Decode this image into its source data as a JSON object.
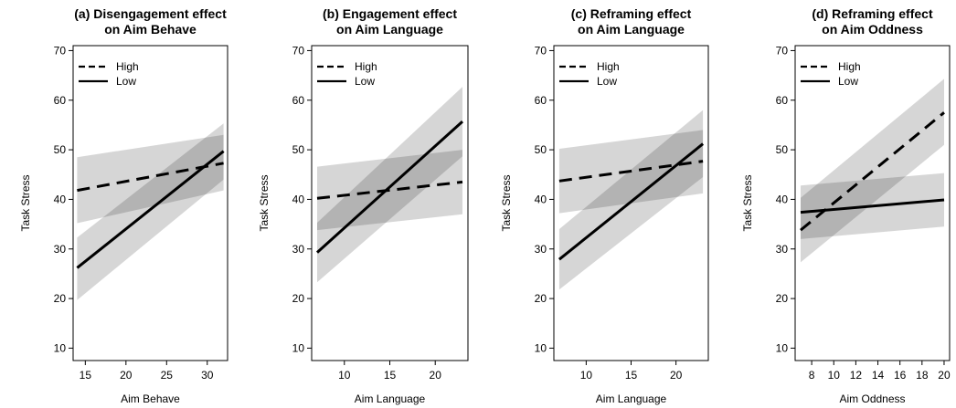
{
  "chart_data": [
    {
      "type": "line",
      "title": "(a) Disengagement effect",
      "subtitle": "on Aim Behave",
      "xlabel": "Aim Behave",
      "ylabel": "Task Stress",
      "xlim": [
        13.5,
        32.5
      ],
      "ylim": [
        7.5,
        71
      ],
      "xticks": [
        15,
        20,
        25,
        30
      ],
      "yticks": [
        10,
        20,
        30,
        40,
        50,
        60,
        70
      ],
      "legend": {
        "position": "top-left"
      },
      "series": [
        {
          "name": "High",
          "style": "dashed",
          "x": [
            14,
            32
          ],
          "y": [
            41.8,
            47.3
          ],
          "band_low": [
            35.2,
            41.8
          ],
          "band_high": [
            48.5,
            53.0
          ]
        },
        {
          "name": "Low",
          "style": "solid",
          "x": [
            14,
            32
          ],
          "y": [
            26.2,
            49.7
          ],
          "band_low": [
            19.7,
            44.0
          ],
          "band_high": [
            32.3,
            55.3
          ]
        }
      ]
    },
    {
      "type": "line",
      "title": "(b) Engagement effect",
      "subtitle": "on Aim Language",
      "xlabel": "Aim Language",
      "ylabel": "Task Stress",
      "xlim": [
        6.4,
        23.6
      ],
      "ylim": [
        7.5,
        71
      ],
      "xticks": [
        10,
        15,
        20
      ],
      "yticks": [
        10,
        20,
        30,
        40,
        50,
        60,
        70
      ],
      "legend": {
        "position": "top-left"
      },
      "series": [
        {
          "name": "High",
          "style": "dashed",
          "x": [
            7,
            23
          ],
          "y": [
            40.2,
            43.5
          ],
          "band_low": [
            33.8,
            37.0
          ],
          "band_high": [
            46.6,
            50.0
          ]
        },
        {
          "name": "Low",
          "style": "solid",
          "x": [
            7,
            23
          ],
          "y": [
            29.3,
            55.7
          ],
          "band_low": [
            23.3,
            48.7
          ],
          "band_high": [
            35.3,
            62.7
          ]
        }
      ]
    },
    {
      "type": "line",
      "title": "(c) Reframing effect",
      "subtitle": "on Aim Language",
      "xlabel": "Aim Language",
      "ylabel": "Task Stress",
      "xlim": [
        6.4,
        23.6
      ],
      "ylim": [
        7.5,
        71
      ],
      "xticks": [
        10,
        15,
        20
      ],
      "yticks": [
        10,
        20,
        30,
        40,
        50,
        60,
        70
      ],
      "legend": {
        "position": "top-left"
      },
      "series": [
        {
          "name": "High",
          "style": "dashed",
          "x": [
            7,
            23
          ],
          "y": [
            43.7,
            47.7
          ],
          "band_low": [
            37.2,
            41.2
          ],
          "band_high": [
            50.2,
            54.0
          ]
        },
        {
          "name": "Low",
          "style": "solid",
          "x": [
            7,
            23
          ],
          "y": [
            27.9,
            51.2
          ],
          "band_low": [
            21.8,
            44.5
          ],
          "band_high": [
            34.0,
            58.0
          ]
        }
      ]
    },
    {
      "type": "line",
      "title": "(d) Reframing effect",
      "subtitle": "on Aim Oddness",
      "xlabel": "Aim Oddness",
      "ylabel": "Task Stress",
      "xlim": [
        6.5,
        20.5
      ],
      "ylim": [
        7.5,
        71
      ],
      "xticks": [
        8,
        10,
        12,
        14,
        16,
        18,
        20
      ],
      "yticks": [
        10,
        20,
        30,
        40,
        50,
        60,
        70
      ],
      "legend": {
        "position": "top-left"
      },
      "series": [
        {
          "name": "High",
          "style": "dashed",
          "x": [
            7,
            20
          ],
          "y": [
            33.8,
            57.5
          ],
          "band_low": [
            27.3,
            51.0
          ],
          "band_high": [
            40.3,
            64.3
          ]
        },
        {
          "name": "Low",
          "style": "solid",
          "x": [
            7,
            20
          ],
          "y": [
            37.4,
            39.9
          ],
          "band_low": [
            32.0,
            34.5
          ],
          "band_high": [
            42.8,
            45.3
          ]
        }
      ]
    }
  ]
}
